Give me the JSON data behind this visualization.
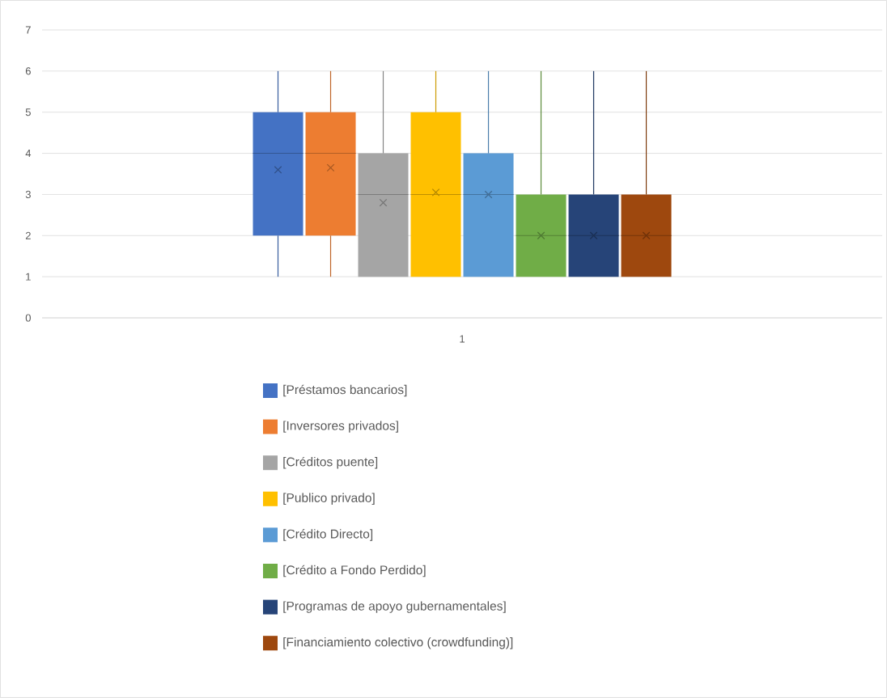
{
  "chart_data": {
    "type": "box",
    "categories": [
      "1"
    ],
    "ylim": [
      0,
      7
    ],
    "yticks": [
      0,
      1,
      2,
      3,
      4,
      5,
      6,
      7
    ],
    "grid": "y",
    "legend": "bottom",
    "series": [
      {
        "name": "[Préstamos bancarios]",
        "color": "#4472c4",
        "boxes": [
          {
            "low": 1,
            "q1": 2,
            "median": 4,
            "q3": 5,
            "high": 6,
            "mean": 3.6
          }
        ]
      },
      {
        "name": "[Inversores privados]",
        "color": "#ed7d31",
        "boxes": [
          {
            "low": 1,
            "q1": 2,
            "median": 4,
            "q3": 5,
            "high": 6,
            "mean": 3.65
          }
        ]
      },
      {
        "name": "[Créditos puente]",
        "color": "#a5a5a5",
        "boxes": [
          {
            "low": 1,
            "q1": 1,
            "median": 3,
            "q3": 4,
            "high": 6,
            "mean": 2.8
          }
        ]
      },
      {
        "name": "[Publico privado]",
        "color": "#ffc000",
        "boxes": [
          {
            "low": 1,
            "q1": 1,
            "median": 3,
            "q3": 5,
            "high": 6,
            "mean": 3.05
          }
        ]
      },
      {
        "name": "[Crédito Directo]",
        "color": "#5b9bd5",
        "boxes": [
          {
            "low": 1,
            "q1": 1,
            "median": 3,
            "q3": 4,
            "high": 6,
            "mean": 3.0
          }
        ]
      },
      {
        "name": "[Crédito a Fondo Perdido]",
        "color": "#70ad47",
        "boxes": [
          {
            "low": 1,
            "q1": 1,
            "median": 2,
            "q3": 3,
            "high": 6,
            "mean": 2.0
          }
        ]
      },
      {
        "name": "[Programas de apoyo gubernamentales]",
        "color": "#264478",
        "boxes": [
          {
            "low": 1,
            "q1": 1,
            "median": 2,
            "q3": 3,
            "high": 6,
            "mean": 2.0
          }
        ]
      },
      {
        "name": "[Financiamiento colectivo (crowdfunding)]",
        "color": "#9e480e",
        "boxes": [
          {
            "low": 1,
            "q1": 1,
            "median": 2,
            "q3": 3,
            "high": 6,
            "mean": 2.0
          }
        ]
      }
    ]
  }
}
